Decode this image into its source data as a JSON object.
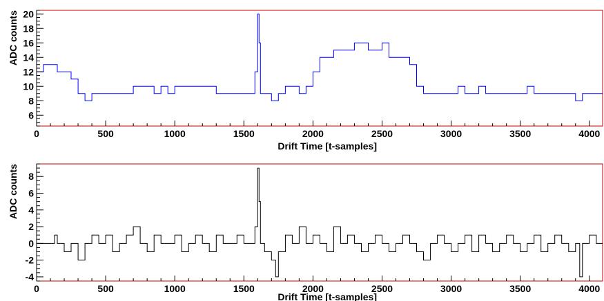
{
  "chart_data": [
    {
      "type": "line",
      "xlabel": "Drift Time [t-samples]",
      "ylabel": "ADC counts",
      "xlim": [
        0,
        4096
      ],
      "ylim": [
        4.5,
        20.5
      ],
      "xticks": [
        0,
        500,
        1000,
        1500,
        2000,
        2500,
        3000,
        3500,
        4000
      ],
      "yticks": [
        6,
        8,
        10,
        12,
        14,
        16,
        18,
        20
      ],
      "grid": false,
      "line_color": "#0000ff",
      "frame_color": "#cc0000",
      "series": [
        {
          "x": [
            0,
            50,
            100,
            150,
            200,
            250,
            300,
            350,
            400,
            450,
            500,
            550,
            600,
            650,
            700,
            750,
            800,
            850,
            900,
            950,
            1000,
            1050,
            1100,
            1150,
            1200,
            1250,
            1300,
            1350,
            1400,
            1450,
            1500,
            1550,
            1580,
            1600,
            1610,
            1620,
            1650,
            1700,
            1750,
            1800,
            1850,
            1900,
            1950,
            2000,
            2050,
            2100,
            2150,
            2200,
            2250,
            2300,
            2350,
            2400,
            2450,
            2500,
            2550,
            2600,
            2650,
            2700,
            2750,
            2800,
            2850,
            2900,
            2950,
            3000,
            3050,
            3100,
            3150,
            3200,
            3250,
            3300,
            3350,
            3400,
            3450,
            3500,
            3550,
            3600,
            3650,
            3700,
            3750,
            3800,
            3850,
            3900,
            3950,
            4000,
            4050,
            4096
          ],
          "values": [
            12,
            13,
            13,
            12,
            12,
            11,
            9,
            8,
            9,
            9,
            9,
            9,
            9,
            9,
            10,
            10,
            10,
            9,
            10,
            9,
            10,
            10,
            10,
            10,
            10,
            10,
            9,
            9,
            9,
            9,
            9,
            9,
            12,
            20,
            16,
            9,
            9,
            8,
            9,
            10,
            10,
            9,
            10,
            12,
            14,
            14,
            15,
            15,
            15,
            16,
            16,
            15,
            15,
            16,
            14,
            14,
            14,
            13,
            10,
            9,
            9,
            9,
            9,
            9,
            10,
            9,
            9,
            10,
            9,
            9,
            9,
            9,
            9,
            9,
            10,
            9,
            9,
            9,
            9,
            9,
            9,
            8,
            9,
            9,
            9,
            9
          ]
        }
      ]
    },
    {
      "type": "line",
      "xlabel": "Drift Time [t-samples]",
      "ylabel": "ADC counts",
      "xlim": [
        0,
        4096
      ],
      "ylim": [
        -4.5,
        9.5
      ],
      "xticks": [
        0,
        500,
        1000,
        1500,
        2000,
        2500,
        3000,
        3500,
        4000
      ],
      "yticks": [
        -4,
        -2,
        0,
        2,
        4,
        6,
        8
      ],
      "grid": false,
      "line_color": "#000000",
      "frame_color": "#cc0000",
      "series": [
        {
          "x": [
            0,
            100,
            130,
            150,
            200,
            250,
            300,
            350,
            400,
            450,
            500,
            550,
            600,
            650,
            700,
            750,
            800,
            850,
            900,
            950,
            1000,
            1050,
            1100,
            1150,
            1200,
            1250,
            1300,
            1350,
            1400,
            1450,
            1500,
            1550,
            1580,
            1600,
            1610,
            1620,
            1650,
            1700,
            1730,
            1750,
            1800,
            1850,
            1900,
            1950,
            2000,
            2050,
            2100,
            2150,
            2200,
            2250,
            2300,
            2350,
            2400,
            2450,
            2500,
            2550,
            2600,
            2650,
            2700,
            2750,
            2800,
            2850,
            2900,
            2950,
            3000,
            3050,
            3100,
            3150,
            3200,
            3250,
            3300,
            3350,
            3400,
            3450,
            3500,
            3550,
            3600,
            3650,
            3700,
            3750,
            3800,
            3850,
            3900,
            3930,
            3950,
            4000,
            4050,
            4096
          ],
          "values": [
            0,
            0,
            1,
            0,
            -1,
            0,
            -2,
            0,
            1,
            0,
            1,
            -1,
            0,
            1,
            2,
            0,
            -1,
            1,
            0,
            0,
            1,
            -1,
            0,
            1,
            0,
            -1,
            1,
            0,
            0,
            1,
            0,
            0,
            2,
            9,
            5,
            0,
            -1,
            -2,
            -4,
            -1,
            1,
            0,
            2,
            0,
            1,
            0,
            -1,
            2,
            0,
            1,
            0,
            -1,
            0,
            1,
            0,
            -1,
            0,
            1,
            0,
            -1,
            -2,
            0,
            1,
            0,
            -1,
            0,
            1,
            -1,
            1,
            0,
            -1,
            0,
            1,
            0,
            -1,
            0,
            1,
            -1,
            0,
            1,
            0,
            -1,
            0,
            -4,
            0,
            1,
            0,
            0
          ]
        }
      ]
    }
  ]
}
